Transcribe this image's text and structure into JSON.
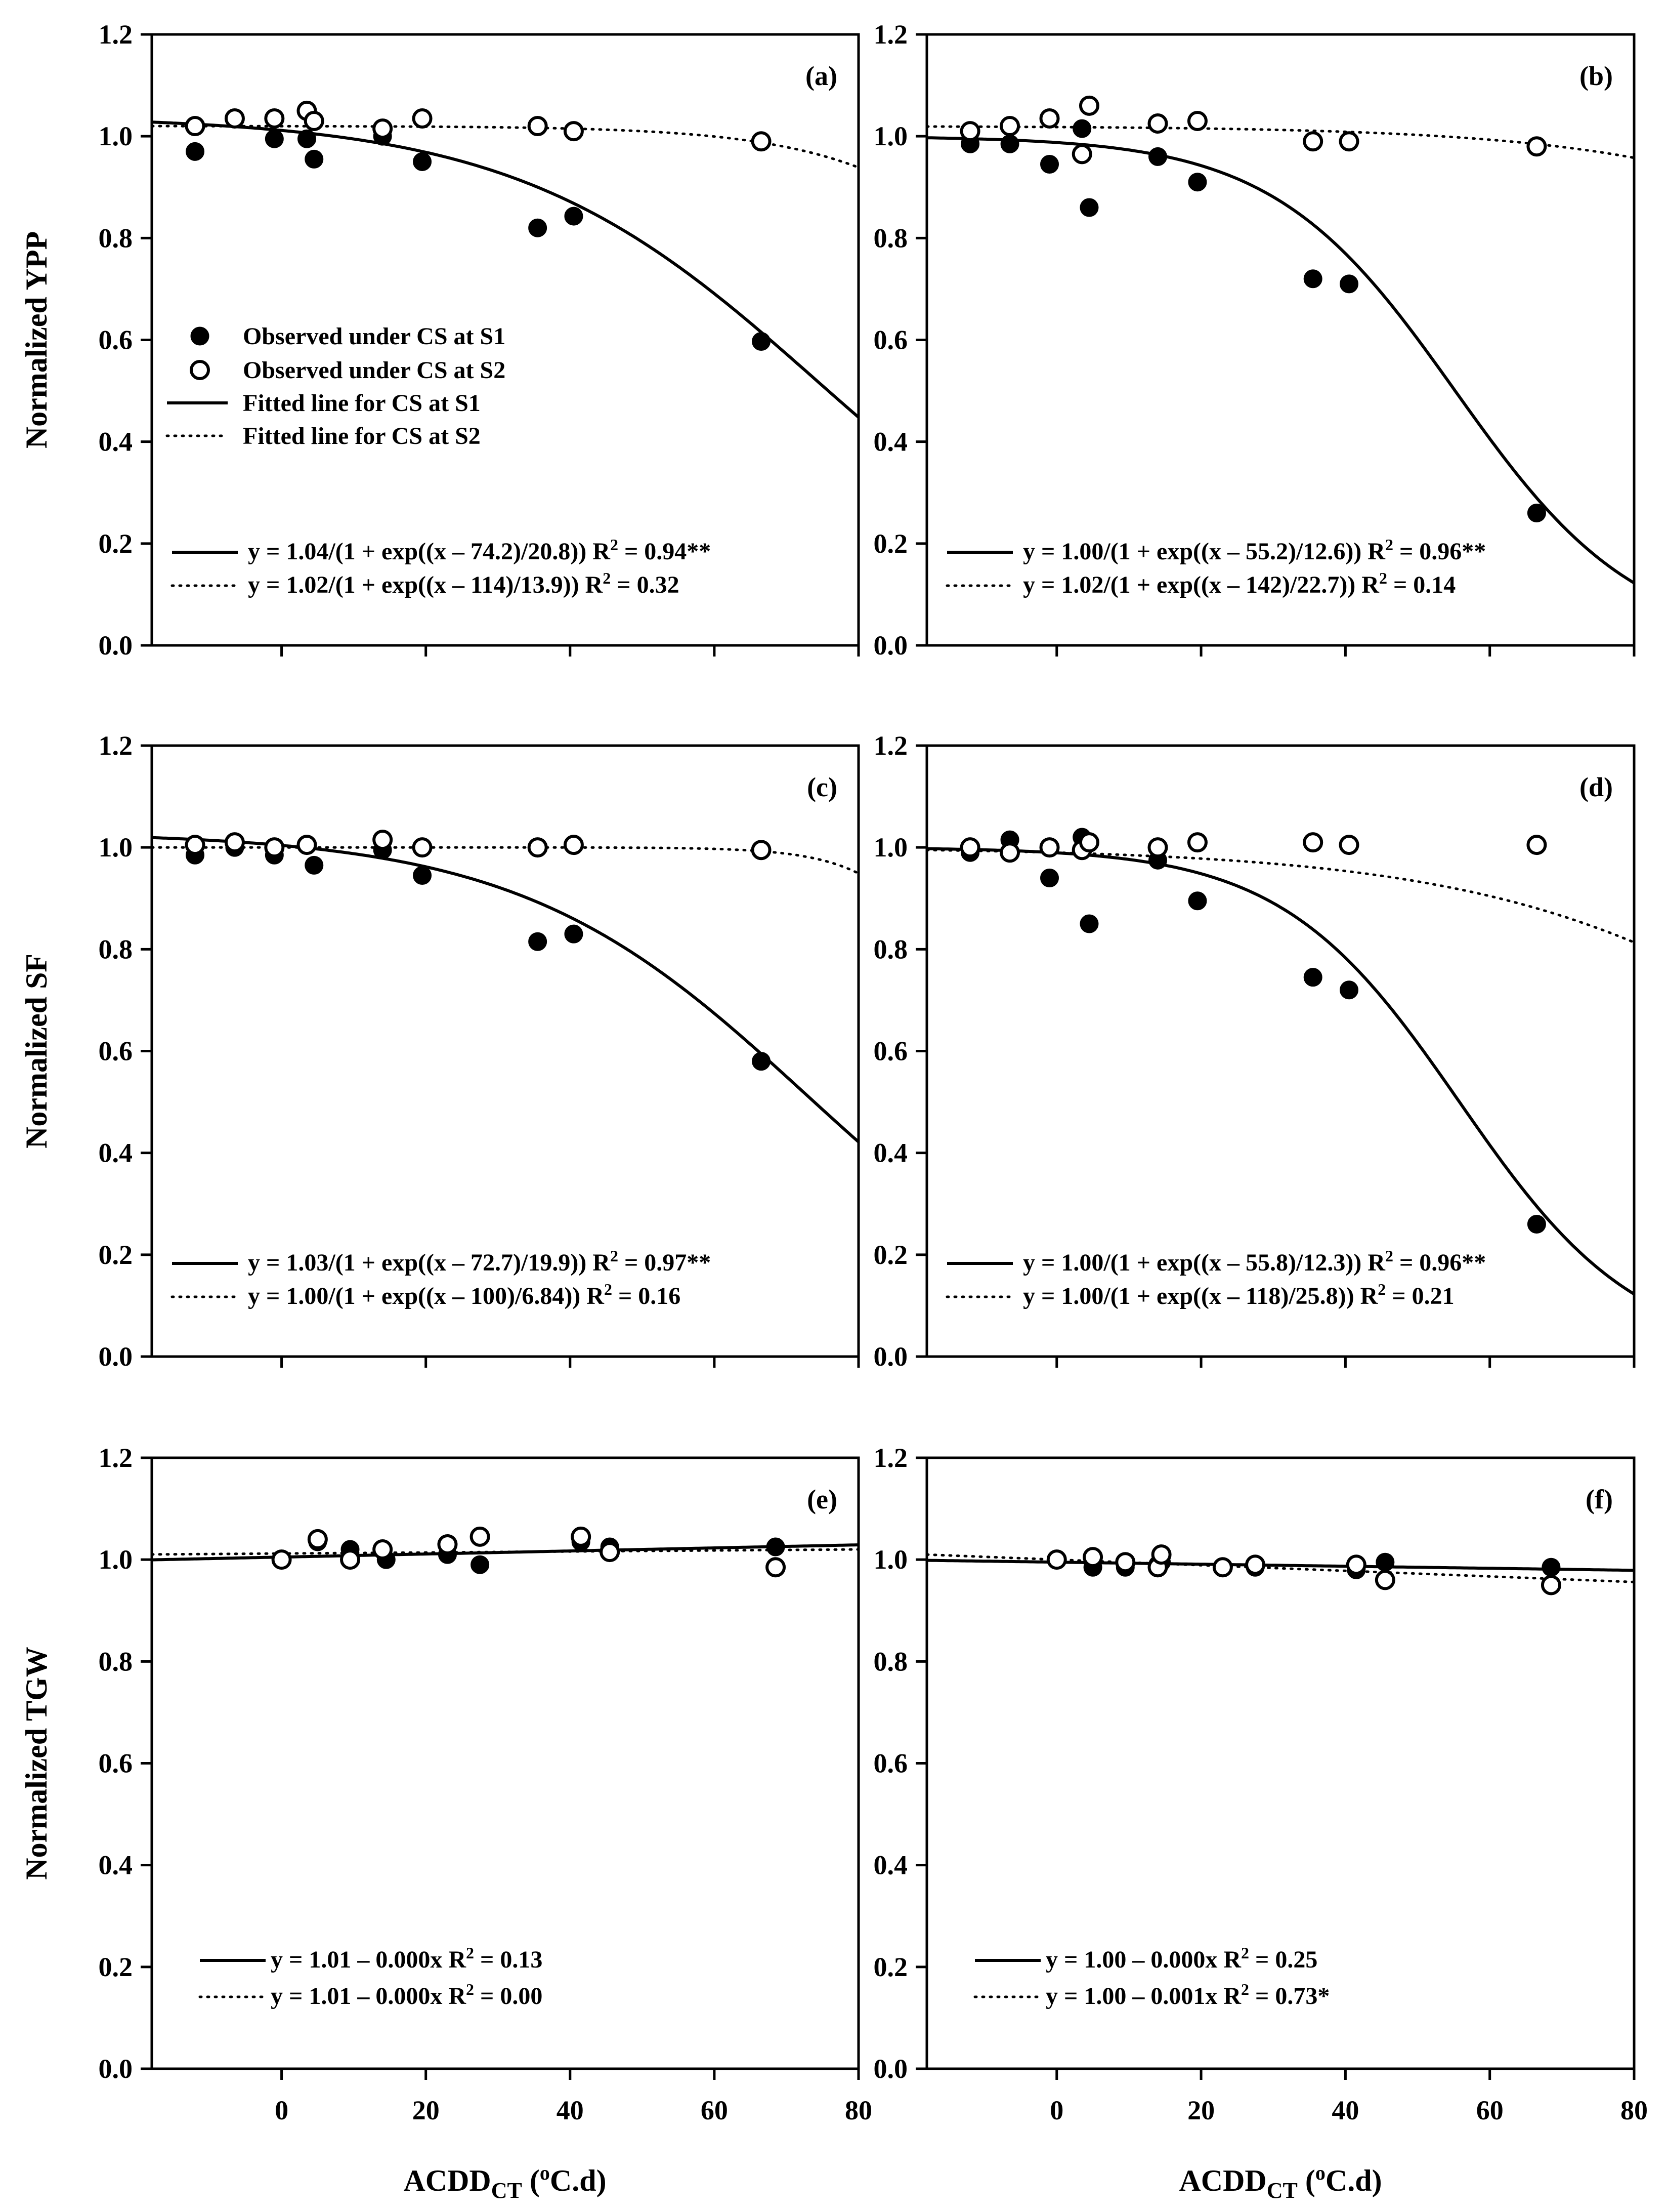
{
  "x_axis_title": {
    "main": "ACDD",
    "sub": "CT",
    "unit": " (",
    "unit_sup": "o",
    "unit_rest": "C.d)"
  },
  "legend": [
    {
      "kind": "s1-marker",
      "label": "Observed under CS at S1"
    },
    {
      "kind": "s2-marker",
      "label": "Observed under CS at S2"
    },
    {
      "kind": "solid-line",
      "label": "Fitted line for CS at S1"
    },
    {
      "kind": "dotted-line",
      "label": "Fitted line for CS at S2"
    }
  ],
  "chart_data": [
    {
      "panel": "(a)",
      "type": "scatter",
      "ylabel": "Normalized YPP",
      "xlim": [
        -18,
        80
      ],
      "ylim": [
        0,
        1.2
      ],
      "xticks": [
        0,
        20,
        40,
        60,
        80
      ],
      "yticks": [
        0.0,
        0.2,
        0.4,
        0.6,
        0.8,
        1.0,
        1.2
      ],
      "show_x_labels": false,
      "series": [
        {
          "name": "Observed under CS at S1",
          "style": "filled",
          "x": [
            -12,
            -1,
            3.5,
            4.5,
            14,
            19.5,
            35.5,
            40.5,
            66.5
          ],
          "y": [
            0.97,
            0.995,
            0.995,
            0.955,
            1.0,
            0.95,
            0.82,
            0.843,
            0.597
          ]
        },
        {
          "name": "Observed under CS at S2",
          "style": "open",
          "x": [
            -12,
            -6.5,
            -1,
            3.5,
            4.5,
            14,
            19.5,
            35.5,
            40.5,
            66.5
          ],
          "y": [
            1.02,
            1.035,
            1.035,
            1.05,
            1.03,
            1.015,
            1.035,
            1.02,
            1.01,
            0.99
          ]
        }
      ],
      "fits": [
        {
          "style": "solid",
          "model": "logistic",
          "a": 1.04,
          "x0": 74.2,
          "b": 20.8,
          "eq": "y = 1.04/(1 + exp((x – 74.2)/20.8))",
          "r2": " = 0.94**"
        },
        {
          "style": "dotted",
          "model": "logistic",
          "a": 1.02,
          "x0": 114,
          "b": 13.9,
          "eq": "y = 1.02/(1 + exp((x – 114)/13.9))",
          "r2": " = 0.32"
        }
      ]
    },
    {
      "panel": "(b)",
      "type": "scatter",
      "ylabel": "",
      "xlim": [
        -18,
        80
      ],
      "ylim": [
        0,
        1.2
      ],
      "xticks": [
        0,
        20,
        40,
        60,
        80
      ],
      "yticks": [
        0.0,
        0.2,
        0.4,
        0.6,
        0.8,
        1.0,
        1.2
      ],
      "show_x_labels": false,
      "series": [
        {
          "name": "Observed under CS at S1",
          "style": "filled",
          "x": [
            -12,
            -6.5,
            -1,
            3.5,
            4.5,
            14,
            19.5,
            35.5,
            40.5,
            66.5
          ],
          "y": [
            0.985,
            0.985,
            0.945,
            1.015,
            0.86,
            0.96,
            0.91,
            0.72,
            0.71,
            0.26
          ]
        },
        {
          "name": "Observed under CS at S2",
          "style": "open",
          "x": [
            -12,
            -6.5,
            -1,
            3.5,
            4.5,
            14,
            19.5,
            35.5,
            40.5,
            66.5
          ],
          "y": [
            1.01,
            1.02,
            1.035,
            0.965,
            1.06,
            1.025,
            1.03,
            0.99,
            0.99,
            0.98
          ]
        }
      ],
      "fits": [
        {
          "style": "solid",
          "model": "logistic",
          "a": 1.0,
          "x0": 55.2,
          "b": 12.6,
          "eq": "y = 1.00/(1 + exp((x – 55.2)/12.6))",
          "r2": " = 0.96**"
        },
        {
          "style": "dotted",
          "model": "logistic",
          "a": 1.02,
          "x0": 142,
          "b": 22.7,
          "eq": "y = 1.02/(1 + exp((x – 142)/22.7))",
          "r2": " = 0.14"
        }
      ]
    },
    {
      "panel": "(c)",
      "type": "scatter",
      "ylabel": "Normalized SF",
      "xlim": [
        -18,
        80
      ],
      "ylim": [
        0,
        1.2
      ],
      "xticks": [
        0,
        20,
        40,
        60,
        80
      ],
      "yticks": [
        0.0,
        0.2,
        0.4,
        0.6,
        0.8,
        1.0,
        1.2
      ],
      "show_x_labels": false,
      "series": [
        {
          "name": "Observed under CS at S1",
          "style": "filled",
          "x": [
            -12,
            -6.5,
            -1,
            4.5,
            14,
            19.5,
            35.5,
            40.5,
            66.5
          ],
          "y": [
            0.985,
            1.0,
            0.985,
            0.965,
            0.995,
            0.945,
            0.815,
            0.83,
            0.58
          ]
        },
        {
          "name": "Observed under CS at S2",
          "style": "open",
          "x": [
            -12,
            -6.5,
            -1,
            3.5,
            14,
            19.5,
            35.5,
            40.5,
            66.5
          ],
          "y": [
            1.005,
            1.01,
            1.0,
            1.005,
            1.015,
            1.0,
            1.0,
            1.005,
            0.995
          ]
        }
      ],
      "fits": [
        {
          "style": "solid",
          "model": "logistic",
          "a": 1.03,
          "x0": 72.7,
          "b": 19.9,
          "eq": "y = 1.03/(1 + exp((x – 72.7)/19.9))",
          "r2": " = 0.97**"
        },
        {
          "style": "dotted",
          "model": "logistic",
          "a": 1.0,
          "x0": 100,
          "b": 6.84,
          "eq": "y = 1.00/(1 + exp((x – 100)/6.84))",
          "r2": " = 0.16"
        }
      ]
    },
    {
      "panel": "(d)",
      "type": "scatter",
      "ylabel": "",
      "xlim": [
        -18,
        80
      ],
      "ylim": [
        0,
        1.2
      ],
      "xticks": [
        0,
        20,
        40,
        60,
        80
      ],
      "yticks": [
        0.0,
        0.2,
        0.4,
        0.6,
        0.8,
        1.0,
        1.2
      ],
      "show_x_labels": false,
      "series": [
        {
          "name": "Observed under CS at S1",
          "style": "filled",
          "x": [
            -12,
            -6.5,
            -1,
            3.5,
            4.5,
            14,
            19.5,
            35.5,
            40.5,
            66.5
          ],
          "y": [
            0.99,
            1.015,
            0.94,
            1.02,
            0.85,
            0.975,
            0.895,
            0.745,
            0.72,
            0.26
          ]
        },
        {
          "name": "Observed under CS at S2",
          "style": "open",
          "x": [
            -12,
            -6.5,
            -1,
            3.5,
            4.5,
            14,
            19.5,
            35.5,
            40.5,
            66.5
          ],
          "y": [
            1.0,
            0.99,
            1.0,
            0.995,
            1.01,
            1.0,
            1.01,
            1.01,
            1.005,
            1.005
          ]
        }
      ],
      "fits": [
        {
          "style": "solid",
          "model": "logistic",
          "a": 1.0,
          "x0": 55.8,
          "b": 12.3,
          "eq": "y = 1.00/(1 + exp((x – 55.8)/12.3))",
          "r2": " = 0.96**"
        },
        {
          "style": "dotted",
          "model": "logistic",
          "a": 1.0,
          "x0": 118,
          "b": 25.8,
          "eq": "y = 1.00/(1 + exp((x – 118)/25.8))",
          "r2": " = 0.21"
        }
      ]
    },
    {
      "panel": "(e)",
      "type": "scatter",
      "ylabel": "Normalized TGW",
      "xlim": [
        -18,
        80
      ],
      "ylim": [
        0,
        1.2
      ],
      "xticks": [
        0,
        20,
        40,
        60,
        80
      ],
      "yticks": [
        0.0,
        0.2,
        0.4,
        0.6,
        0.8,
        1.0,
        1.2
      ],
      "show_x_labels": true,
      "series": [
        {
          "name": "Observed under CS at S1",
          "style": "filled",
          "x": [
            0,
            5,
            9.5,
            14,
            14.5,
            23,
            27.5,
            41.5,
            45.5,
            68.5
          ],
          "y": [
            1.0,
            1.035,
            1.02,
            1.02,
            1.0,
            1.01,
            0.99,
            1.035,
            1.025,
            1.025
          ]
        },
        {
          "name": "Observed under CS at S2",
          "style": "open",
          "x": [
            0,
            5,
            9.5,
            14,
            23,
            27.5,
            41.5,
            45.5,
            68.5
          ],
          "y": [
            1.0,
            1.04,
            1.0,
            1.02,
            1.03,
            1.045,
            1.045,
            1.015,
            0.985
          ]
        }
      ],
      "fits": [
        {
          "style": "solid",
          "model": "linear",
          "intercept": 1.005,
          "slope": 0.0003,
          "eq": "y = 1.01 – 0.000x",
          "r2": " = 0.13"
        },
        {
          "style": "dotted",
          "model": "linear",
          "intercept": 1.012,
          "slope": 0.0001,
          "eq": "y = 1.01 – 0.000x",
          "r2": " = 0.00"
        }
      ]
    },
    {
      "panel": "(f)",
      "type": "scatter",
      "ylabel": "",
      "xlim": [
        -18,
        80
      ],
      "ylim": [
        0,
        1.2
      ],
      "xticks": [
        0,
        20,
        40,
        60,
        80
      ],
      "yticks": [
        0.0,
        0.2,
        0.4,
        0.6,
        0.8,
        1.0,
        1.2
      ],
      "show_x_labels": true,
      "series": [
        {
          "name": "Observed under CS at S1",
          "style": "filled",
          "x": [
            0,
            5,
            9.5,
            14,
            14.5,
            23,
            27.5,
            41.5,
            45.5,
            68.5
          ],
          "y": [
            1.0,
            0.985,
            0.985,
            0.99,
            0.995,
            0.985,
            0.985,
            0.98,
            0.995,
            0.985
          ]
        },
        {
          "name": "Observed under CS at S2",
          "style": "open",
          "x": [
            0,
            5,
            9.5,
            14,
            14.5,
            23,
            27.5,
            41.5,
            45.5,
            68.5
          ],
          "y": [
            1.0,
            1.005,
            0.995,
            0.985,
            1.01,
            0.985,
            0.99,
            0.99,
            0.96,
            0.95
          ]
        }
      ],
      "fits": [
        {
          "style": "solid",
          "model": "linear",
          "intercept": 0.995,
          "slope": -0.0002,
          "eq": "y = 1.00 – 0.000x",
          "r2": " = 0.25"
        },
        {
          "style": "dotted",
          "model": "linear",
          "intercept": 1.0,
          "slope": -0.00055,
          "eq": "y = 1.00 – 0.001x",
          "r2": " = 0.73*"
        }
      ]
    }
  ]
}
